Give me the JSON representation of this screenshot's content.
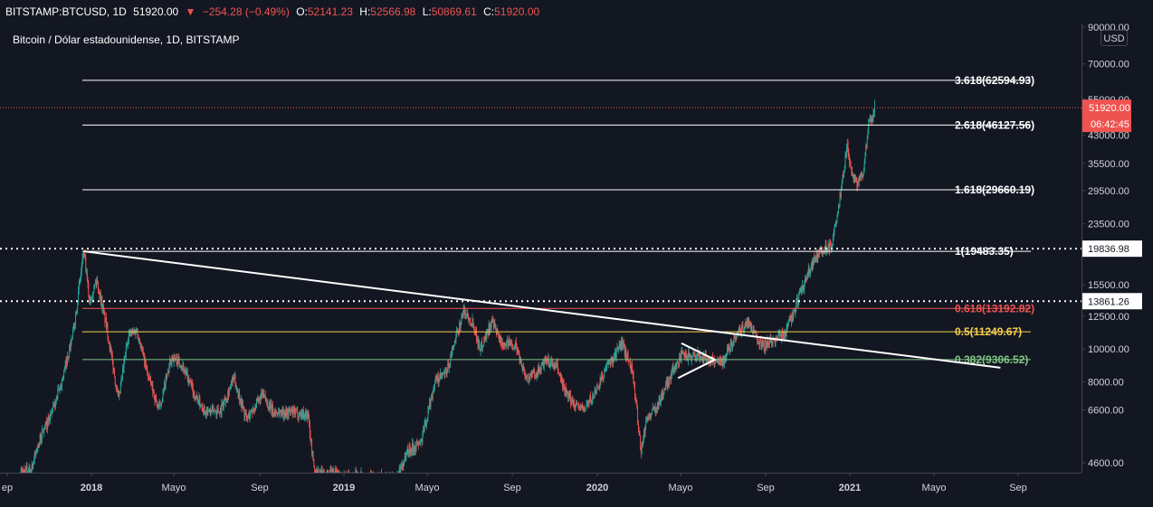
{
  "header": {
    "symbol": "BITSTAMP:BTCUSD, 1D",
    "last": "51920.00",
    "change": "−254.28 (−0.49%)",
    "o_label": "O:",
    "o_value": "52141.23",
    "h_label": "H:",
    "h_value": "52566.98",
    "l_label": "L:",
    "l_value": "50869.61",
    "c_label": "C:",
    "c_value": "51920.00"
  },
  "subtitle": "Bitcoin / Dólar estadounidense, 1D, BITSTAMP",
  "currency_button": "USD",
  "colors": {
    "background": "#131722",
    "up": "#26a69a",
    "down": "#ef5350",
    "text": "#d1d4dc",
    "price_tag": "#ef5350"
  },
  "chart_data": {
    "type": "candlestick",
    "scale": "log",
    "ylim": [
      4300,
      90000
    ],
    "y_ticks": [
      "90000.00",
      "70000.00",
      "55000.00",
      "43000.00",
      "35500.00",
      "29500.00",
      "23500.00",
      "15500.00",
      "12500.00",
      "10000.00",
      "8000.00",
      "6600.00",
      "4600.00"
    ],
    "x_ticks": [
      "ep",
      "2018",
      "Mayo",
      "Sep",
      "2019",
      "Mayo",
      "Sep",
      "2020",
      "Mayo",
      "Sep",
      "2021",
      "Mayo",
      "Sep"
    ],
    "price_path": [
      [
        "2017-09-15",
        4300
      ],
      [
        "2017-10-01",
        4400
      ],
      [
        "2017-10-15",
        5500
      ],
      [
        "2017-11-01",
        6500
      ],
      [
        "2017-11-15",
        8000
      ],
      [
        "2017-12-01",
        11000
      ],
      [
        "2017-12-17",
        19483
      ],
      [
        "2017-12-25",
        14000
      ],
      [
        "2018-01-05",
        16000
      ],
      [
        "2018-01-20",
        11500
      ],
      [
        "2018-02-06",
        7000
      ],
      [
        "2018-02-20",
        11000
      ],
      [
        "2018-03-05",
        11400
      ],
      [
        "2018-03-20",
        8500
      ],
      [
        "2018-04-06",
        6600
      ],
      [
        "2018-04-25",
        9500
      ],
      [
        "2018-05-10",
        9000
      ],
      [
        "2018-05-28",
        7300
      ],
      [
        "2018-06-15",
        6500
      ],
      [
        "2018-07-05",
        6600
      ],
      [
        "2018-07-25",
        8200
      ],
      [
        "2018-08-12",
        6200
      ],
      [
        "2018-09-05",
        7300
      ],
      [
        "2018-09-20",
        6500
      ],
      [
        "2018-10-15",
        6500
      ],
      [
        "2018-11-10",
        6400
      ],
      [
        "2018-11-20",
        4300
      ],
      [
        "2019-03-20",
        4100
      ],
      [
        "2019-04-05",
        5000
      ],
      [
        "2019-04-25",
        5300
      ],
      [
        "2019-05-15",
        8000
      ],
      [
        "2019-06-01",
        8500
      ],
      [
        "2019-06-26",
        13000
      ],
      [
        "2019-07-10",
        12000
      ],
      [
        "2019-07-20",
        10000
      ],
      [
        "2019-08-06",
        12000
      ],
      [
        "2019-08-20",
        10500
      ],
      [
        "2019-09-10",
        10300
      ],
      [
        "2019-09-26",
        8200
      ],
      [
        "2019-10-10",
        8500
      ],
      [
        "2019-10-26",
        9200
      ],
      [
        "2019-11-10",
        8800
      ],
      [
        "2019-11-25",
        7200
      ],
      [
        "2019-12-18",
        6600
      ],
      [
        "2020-01-01",
        7200
      ],
      [
        "2020-01-20",
        8700
      ],
      [
        "2020-02-13",
        10400
      ],
      [
        "2020-02-28",
        8700
      ],
      [
        "2020-03-12",
        5000
      ],
      [
        "2020-03-20",
        6200
      ],
      [
        "2020-04-05",
        6800
      ],
      [
        "2020-04-29",
        8800
      ],
      [
        "2020-05-10",
        9500
      ],
      [
        "2020-06-01",
        9600
      ],
      [
        "2020-06-20",
        9300
      ],
      [
        "2020-07-10",
        9200
      ],
      [
        "2020-07-28",
        11000
      ],
      [
        "2020-08-17",
        12000
      ],
      [
        "2020-09-05",
        10200
      ],
      [
        "2020-09-25",
        10700
      ],
      [
        "2020-10-10",
        11300
      ],
      [
        "2020-10-21",
        12800
      ],
      [
        "2020-11-05",
        15500
      ],
      [
        "2020-11-20",
        18500
      ],
      [
        "2020-12-01",
        19500
      ],
      [
        "2020-12-16",
        20500
      ],
      [
        "2020-12-25",
        25000
      ],
      [
        "2021-01-08",
        41000
      ],
      [
        "2021-01-12",
        34000
      ],
      [
        "2021-01-22",
        31000
      ],
      [
        "2021-02-01",
        34000
      ],
      [
        "2021-02-08",
        46000
      ],
      [
        "2021-02-14",
        49000
      ],
      [
        "2021-02-17",
        51920
      ]
    ],
    "fib_levels": [
      {
        "label": "3.618(62594.93)",
        "value": 62594.93,
        "color": "#ffffff"
      },
      {
        "label": "2.618(46127.56)",
        "value": 46127.56,
        "color": "#ffffff"
      },
      {
        "label": "1.618(29660.19)",
        "value": 29660.19,
        "color": "#ffffff"
      },
      {
        "label": "1(19483.35)",
        "value": 19483.35,
        "color": "#ffffff"
      },
      {
        "label": "0.618(13192.82)",
        "value": 13192.82,
        "color": "#ef5350"
      },
      {
        "label": "0.5(11249.67)",
        "value": 11249.67,
        "color": "#f5d04c"
      },
      {
        "label": "0.382(9306.52)",
        "value": 9306.52,
        "color": "#81c784"
      }
    ],
    "horizontal_lines": [
      {
        "label": "19836.98",
        "value": 19836.98
      },
      {
        "label": "13861.26",
        "value": 13861.26
      }
    ],
    "trendline": {
      "from": [
        "2017-12-17",
        19483
      ],
      "to": [
        "2021-08-20",
        8800
      ]
    },
    "triangle": {
      "top": [
        "2020-05-10",
        10400
      ],
      "apex": [
        "2020-06-28",
        9300
      ],
      "bottom": [
        "2020-05-05",
        8200
      ]
    },
    "price_tag": "51920.00",
    "countdown": "06:42:45"
  }
}
